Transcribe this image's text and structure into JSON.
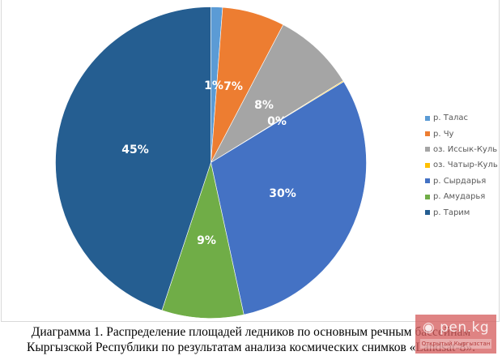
{
  "chart_data": {
    "type": "pie",
    "title": "",
    "categories": [
      "р. Талас",
      "р. Чу",
      "оз. Иссык-Куль",
      "оз. Чатыр-Куль",
      "р. Сырдарья",
      "р. Амударья",
      "р. Тарим"
    ],
    "values": [
      1.2,
      6.5,
      8.5,
      0.1,
      30.3,
      8.5,
      44.9
    ],
    "labels": [
      "1%",
      "7%",
      "8%",
      "0%",
      "30%",
      "9%",
      "45%"
    ],
    "colors": [
      "#5b9bd5",
      "#ed7d31",
      "#a5a5a5",
      "#ffc000",
      "#4472c4",
      "#70ad47",
      "#255e91"
    ],
    "legend_position": "right",
    "start_angle": "top, clockwise"
  },
  "legend": {
    "items": [
      {
        "label": "р. Талас",
        "color": "#5b9bd5"
      },
      {
        "label": "р. Чу",
        "color": "#ed7d31"
      },
      {
        "label": "оз. Иссык-Куль",
        "color": "#a5a5a5"
      },
      {
        "label": "оз. Чатыр-Куль",
        "color": "#ffc000"
      },
      {
        "label": "р. Сырдарья",
        "color": "#4472c4"
      },
      {
        "label": "р. Амударья",
        "color": "#70ad47"
      },
      {
        "label": "р. Тарим",
        "color": "#255e91"
      }
    ]
  },
  "caption": {
    "line1": "Диаграмма 1. Распределение площадей ледников по основным речным бассейнам",
    "line2": "Кыргызской Республики по результатам анализа космических снимков «Landsat-8»."
  },
  "watermark": {
    "logo": "◉ pen.kg",
    "subtitle": "Открытый Кыргызстан"
  }
}
